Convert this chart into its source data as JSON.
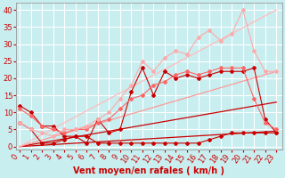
{
  "background_color": "#c8eef0",
  "grid_color": "#ffffff",
  "xlabel": "Vent moyen/en rafales ( km/h )",
  "xlabel_color": "#cc0000",
  "xlabel_fontsize": 7,
  "tick_label_color": "#cc0000",
  "tick_label_fontsize": 6,
  "ylim": [
    -1,
    42
  ],
  "xlim": [
    -0.3,
    23.5
  ],
  "yticks": [
    0,
    5,
    10,
    15,
    20,
    25,
    30,
    35,
    40
  ],
  "xticks": [
    0,
    1,
    2,
    3,
    4,
    5,
    6,
    7,
    8,
    9,
    10,
    11,
    12,
    13,
    14,
    15,
    16,
    17,
    18,
    19,
    20,
    21,
    22,
    23
  ],
  "series": [
    {
      "label": "dark_red_line_straight1",
      "x": [
        0,
        23
      ],
      "y": [
        0,
        4.5
      ],
      "color": "#cc0000",
      "marker": null,
      "markersize": 0,
      "linewidth": 0.9,
      "linestyle": "-",
      "zorder": 2
    },
    {
      "label": "dark_red_line_straight2",
      "x": [
        0,
        23
      ],
      "y": [
        0,
        13
      ],
      "color": "#cc0000",
      "marker": null,
      "markersize": 0,
      "linewidth": 0.9,
      "linestyle": "-",
      "zorder": 2
    },
    {
      "label": "pink_line_straight3",
      "x": [
        0,
        23
      ],
      "y": [
        0,
        22
      ],
      "color": "#ff9999",
      "marker": null,
      "markersize": 0,
      "linewidth": 0.9,
      "linestyle": "-",
      "zorder": 2
    },
    {
      "label": "light_pink_line_straight4",
      "x": [
        0,
        23
      ],
      "y": [
        0,
        40
      ],
      "color": "#ffbbbb",
      "marker": null,
      "markersize": 0,
      "linewidth": 0.9,
      "linestyle": "-",
      "zorder": 2
    },
    {
      "label": "dark_red_markers_series",
      "x": [
        0,
        1,
        2,
        3,
        4,
        5,
        6,
        7,
        8,
        9,
        10,
        11,
        12,
        13,
        14,
        15,
        16,
        17,
        18,
        19,
        20,
        21,
        22,
        23
      ],
      "y": [
        7,
        5,
        1,
        1,
        2,
        3,
        1,
        8,
        4,
        5,
        16,
        23,
        15,
        22,
        20,
        21,
        20,
        21,
        22,
        22,
        22,
        23,
        8,
        4
      ],
      "color": "#cc0000",
      "marker": "D",
      "markersize": 2,
      "linewidth": 0.8,
      "linestyle": "-",
      "zorder": 4
    },
    {
      "label": "dark_red_markers_series2_flat",
      "x": [
        0,
        1,
        2,
        3,
        4,
        5,
        6,
        7,
        8,
        9,
        10,
        11,
        12,
        13,
        14,
        15,
        16,
        17,
        18,
        19,
        20,
        21,
        22,
        23
      ],
      "y": [
        12,
        10,
        6,
        6,
        3,
        3,
        3,
        1,
        1,
        1,
        1,
        1,
        1,
        1,
        1,
        1,
        1,
        2,
        3,
        4,
        4,
        4,
        4,
        4
      ],
      "color": "#cc0000",
      "marker": "D",
      "markersize": 2,
      "linewidth": 0.8,
      "linestyle": "-",
      "zorder": 4
    },
    {
      "label": "medium_red_markers",
      "x": [
        0,
        1,
        2,
        3,
        4,
        5,
        6,
        7,
        8,
        9,
        10,
        11,
        12,
        13,
        14,
        15,
        16,
        17,
        18,
        19,
        20,
        21,
        22,
        23
      ],
      "y": [
        11,
        9,
        6,
        5,
        4,
        5,
        5,
        7,
        8,
        11,
        14,
        15,
        18,
        19,
        21,
        22,
        21,
        22,
        23,
        23,
        23,
        14,
        7,
        5
      ],
      "color": "#ff6666",
      "marker": "D",
      "markersize": 2,
      "linewidth": 0.8,
      "linestyle": "-",
      "zorder": 4
    },
    {
      "label": "light_pink_markers_high",
      "x": [
        0,
        1,
        2,
        3,
        4,
        5,
        6,
        7,
        8,
        9,
        10,
        11,
        12,
        13,
        14,
        15,
        16,
        17,
        18,
        19,
        20,
        21,
        22,
        23
      ],
      "y": [
        7,
        5,
        4,
        3,
        5,
        5,
        6,
        8,
        10,
        14,
        18,
        25,
        22,
        26,
        28,
        27,
        32,
        34,
        31,
        33,
        40,
        28,
        22,
        22
      ],
      "color": "#ffaaaa",
      "marker": "D",
      "markersize": 2,
      "linewidth": 0.8,
      "linestyle": "-",
      "zorder": 4
    }
  ]
}
